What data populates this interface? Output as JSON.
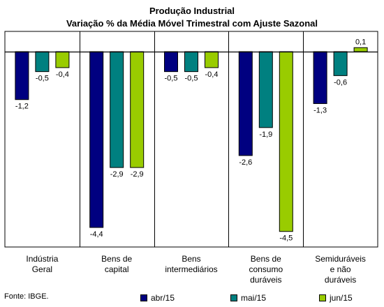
{
  "chart_data": {
    "type": "bar",
    "title": "Produção Industrial",
    "subtitle": "Variação % da Média Móvel Trimestral com Ajuste Sazonal",
    "categories": [
      [
        "Indústria",
        "Geral"
      ],
      [
        "Bens de",
        "capital"
      ],
      [
        "Bens",
        "intermediários"
      ],
      [
        "Bens de",
        "consumo",
        "duráveis"
      ],
      [
        "Semiduráveis",
        "e não",
        "duráveis"
      ]
    ],
    "series": [
      {
        "name": "abr/15",
        "color": "#000080",
        "values": [
          -1.2,
          -4.4,
          -0.5,
          -2.6,
          -1.3
        ],
        "labels": [
          "-1,2",
          "-4,4",
          "-0,5",
          "-2,6",
          "-1,3"
        ]
      },
      {
        "name": "mai/15",
        "color": "#008080",
        "values": [
          -0.5,
          -2.9,
          -0.5,
          -1.9,
          -0.6
        ],
        "labels": [
          "-0,5",
          "-2,9",
          "-0,5",
          "-1,9",
          "-0,6"
        ]
      },
      {
        "name": "jun/15",
        "color": "#99CC00",
        "values": [
          -0.4,
          -2.9,
          -0.4,
          -4.5,
          0.1
        ],
        "labels": [
          "-0,4",
          "-2,9",
          "-0,4",
          "-4,5",
          "0,1"
        ]
      }
    ],
    "ylim": [
      -4.6,
      0.4
    ],
    "grid": false,
    "legend_position": "bottom"
  },
  "footer": {
    "source": "Fonte: IBGE."
  }
}
